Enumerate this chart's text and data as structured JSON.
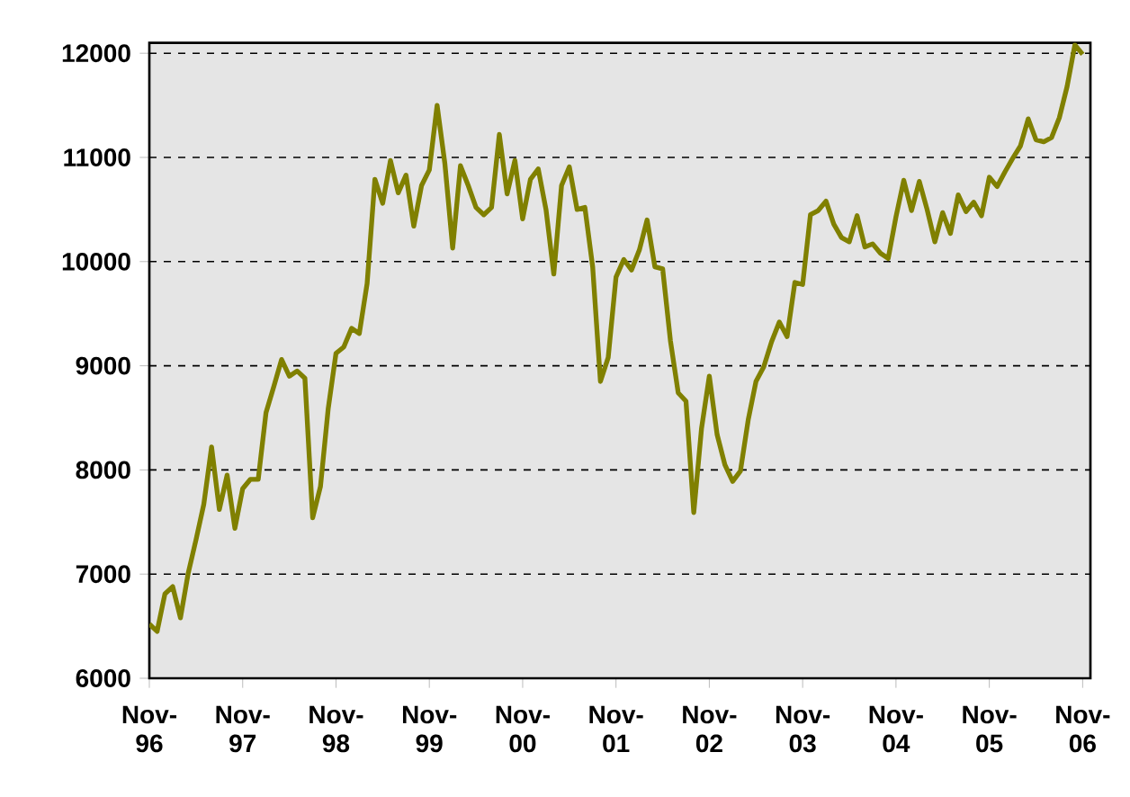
{
  "chart_data": {
    "type": "line",
    "categories": [
      "Nov-96",
      null,
      null,
      null,
      null,
      null,
      null,
      null,
      null,
      null,
      null,
      null,
      "Nov-97",
      null,
      null,
      null,
      null,
      null,
      null,
      null,
      null,
      null,
      null,
      null,
      "Nov-98",
      null,
      null,
      null,
      null,
      null,
      null,
      null,
      null,
      null,
      null,
      null,
      "Nov-99",
      null,
      null,
      null,
      null,
      null,
      null,
      null,
      null,
      null,
      null,
      null,
      "Nov-00",
      null,
      null,
      null,
      null,
      null,
      null,
      null,
      null,
      null,
      null,
      null,
      "Nov-01",
      null,
      null,
      null,
      null,
      null,
      null,
      null,
      null,
      null,
      null,
      null,
      "Nov-02",
      null,
      null,
      null,
      null,
      null,
      null,
      null,
      null,
      null,
      null,
      null,
      "Nov-03",
      null,
      null,
      null,
      null,
      null,
      null,
      null,
      null,
      null,
      null,
      null,
      "Nov-04",
      null,
      null,
      null,
      null,
      null,
      null,
      null,
      null,
      null,
      null,
      null,
      "Nov-05",
      null,
      null,
      null,
      null,
      null,
      null,
      null,
      null,
      null,
      null,
      null,
      "Nov-06"
    ],
    "values": [
      6520,
      6450,
      6810,
      6880,
      6580,
      7010,
      7330,
      7670,
      8220,
      7620,
      7950,
      7440,
      7820,
      7910,
      7910,
      8550,
      8800,
      9060,
      8900,
      8950,
      8880,
      7540,
      7840,
      8590,
      9120,
      9180,
      9360,
      9310,
      9790,
      10790,
      10560,
      10970,
      10660,
      10830,
      10340,
      10730,
      10880,
      11500,
      10940,
      10130,
      10920,
      10730,
      10520,
      10450,
      10520,
      11220,
      10650,
      10970,
      10410,
      10790,
      10890,
      10500,
      9880,
      10730,
      10910,
      10500,
      10520,
      9950,
      8850,
      9080,
      9850,
      10020,
      9920,
      10110,
      10400,
      9950,
      9930,
      9240,
      8740,
      8660,
      7590,
      8400,
      8900,
      8340,
      8050,
      7890,
      7990,
      8480,
      8850,
      8990,
      9230,
      9420,
      9280,
      9800,
      9780,
      10450,
      10490,
      10580,
      10360,
      10230,
      10190,
      10440,
      10140,
      10170,
      10080,
      10030,
      10430,
      10780,
      10490,
      10770,
      10500,
      10190,
      10470,
      10270,
      10640,
      10480,
      10570,
      10440,
      10810,
      10720,
      10860,
      10990,
      11110,
      11370,
      11170,
      11150,
      11190,
      11380,
      11680,
      12080,
      11990
    ],
    "color": "#808000",
    "ylim": [
      6000,
      12100
    ],
    "yticks": [
      6000,
      7000,
      8000,
      9000,
      10000,
      11000,
      12000
    ],
    "grid": "y"
  }
}
